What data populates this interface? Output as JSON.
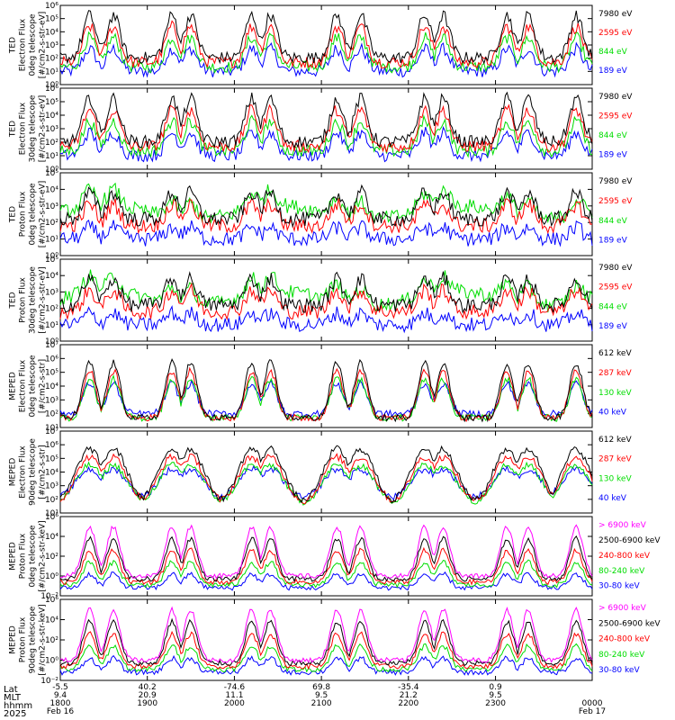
{
  "colors": {
    "blue": "#0000ff",
    "red": "#ff0000",
    "green": "#00dd00",
    "black": "#000000",
    "magenta": "#ff00ff"
  },
  "chart_data": [
    {
      "type": "line",
      "ylabel": [
        "TED",
        "Electron Flux",
        "0deg telescope",
        "[#/cm2-s-str-eV]"
      ],
      "ylim": [
        1,
        1000000
      ],
      "log": true,
      "yticks": [
        "10⁰",
        "10¹",
        "10²",
        "10³",
        "10⁴",
        "10⁵",
        "10⁶"
      ],
      "yticks_exp": [
        0,
        1,
        2,
        3,
        4,
        5,
        6
      ],
      "series": [
        {
          "name": "7980 eV",
          "color": "#000000"
        },
        {
          "name": "2595 eV",
          "color": "#ff0000"
        },
        {
          "name": "844 eV",
          "color": "#00dd00"
        },
        {
          "name": "189 eV",
          "color": "#0000ff"
        }
      ]
    },
    {
      "type": "line",
      "ylabel": [
        "TED",
        "Electron Flux",
        "30deg telescope",
        "[#/cm2-s-str-eV]"
      ],
      "ylim": [
        1,
        1000000
      ],
      "log": true,
      "yticks": [
        "10⁰",
        "10¹",
        "10²",
        "10³",
        "10⁴",
        "10⁵",
        "10⁶"
      ],
      "yticks_exp": [
        0,
        1,
        2,
        3,
        4,
        5,
        6
      ],
      "series": [
        {
          "name": "7980 eV",
          "color": "#000000"
        },
        {
          "name": "2595 eV",
          "color": "#ff0000"
        },
        {
          "name": "844 eV",
          "color": "#00dd00"
        },
        {
          "name": "189 eV",
          "color": "#0000ff"
        }
      ]
    },
    {
      "type": "line",
      "ylabel": [
        "TED",
        "Proton Flux",
        "0deg telescope",
        "[#/cm2-s-str-eV]"
      ],
      "ylim": [
        1,
        100000
      ],
      "log": true,
      "yticks": [
        "10⁰",
        "10¹",
        "10²",
        "10³",
        "10⁴",
        "10⁵"
      ],
      "yticks_exp": [
        0,
        1,
        2,
        3,
        4,
        5
      ],
      "series": [
        {
          "name": "7980 eV",
          "color": "#000000"
        },
        {
          "name": "2595 eV",
          "color": "#ff0000"
        },
        {
          "name": "844 eV",
          "color": "#00dd00"
        },
        {
          "name": "189 eV",
          "color": "#0000ff"
        }
      ]
    },
    {
      "type": "line",
      "ylabel": [
        "TED",
        "Proton Flux",
        "30deg telescope",
        "[#/cm2-s-str-eV]"
      ],
      "ylim": [
        1,
        100000
      ],
      "log": true,
      "yticks": [
        "10⁰",
        "10¹",
        "10²",
        "10³",
        "10⁴",
        "10⁵"
      ],
      "yticks_exp": [
        0,
        1,
        2,
        3,
        4,
        5
      ],
      "series": [
        {
          "name": "7980 eV",
          "color": "#000000"
        },
        {
          "name": "2595 eV",
          "color": "#ff0000"
        },
        {
          "name": "844 eV",
          "color": "#00dd00"
        },
        {
          "name": "189 eV",
          "color": "#0000ff"
        }
      ]
    },
    {
      "type": "line",
      "ylabel": [
        "MEPED",
        "Electron Flux",
        "0deg telescope",
        "[#/cm2-s-str]"
      ],
      "ylim": [
        10,
        10000000
      ],
      "log": true,
      "yticks": [
        "10¹",
        "10²",
        "10³",
        "10⁴",
        "10⁵",
        "10⁶",
        "10⁷"
      ],
      "yticks_exp": [
        1,
        2,
        3,
        4,
        5,
        6,
        7
      ],
      "series": [
        {
          "name": "612 keV",
          "color": "#000000"
        },
        {
          "name": "287 keV",
          "color": "#ff0000"
        },
        {
          "name": "130 keV",
          "color": "#00dd00"
        },
        {
          "name": "40 keV",
          "color": "#0000ff"
        }
      ]
    },
    {
      "type": "line",
      "ylabel": [
        "MEPED",
        "Electron Flux",
        "90deg telescope",
        "[#/cm2-s-str]"
      ],
      "ylim": [
        10,
        10000000
      ],
      "log": true,
      "yticks": [
        "10¹",
        "10²",
        "10³",
        "10⁴",
        "10⁵",
        "10⁶",
        "10⁷"
      ],
      "yticks_exp": [
        1,
        2,
        3,
        4,
        5,
        6,
        7
      ],
      "series": [
        {
          "name": "612 keV",
          "color": "#000000"
        },
        {
          "name": "287 keV",
          "color": "#ff0000"
        },
        {
          "name": "130 keV",
          "color": "#00dd00"
        },
        {
          "name": "40 keV",
          "color": "#0000ff"
        }
      ]
    },
    {
      "type": "line",
      "ylabel": [
        "MEPED",
        "Proton Flux",
        "0deg telescope",
        "[#/cm2-s-str-keV]"
      ],
      "ylim": [
        0.01,
        1000000
      ],
      "log": true,
      "yticks": [
        "10⁻²",
        "10⁰",
        "10²",
        "10⁴",
        "10⁶"
      ],
      "yticks_exp": [
        -2,
        0,
        2,
        4,
        6
      ],
      "series": [
        {
          "name": "> 6900 keV",
          "color": "#ff00ff"
        },
        {
          "name": "2500-6900 keV",
          "color": "#000000"
        },
        {
          "name": "240-800 keV",
          "color": "#ff0000"
        },
        {
          "name": "80-240 keV",
          "color": "#00dd00"
        },
        {
          "name": "30-80 keV",
          "color": "#0000ff"
        }
      ]
    },
    {
      "type": "line",
      "ylabel": [
        "MEPED",
        "Proton Flux",
        "90deg telescope",
        "[#/cm2-s-str-keV]"
      ],
      "ylim": [
        0.01,
        1000000
      ],
      "log": true,
      "yticks": [
        "10⁻²",
        "10⁰",
        "10²",
        "10⁴",
        "10⁶"
      ],
      "yticks_exp": [
        -2,
        0,
        2,
        4,
        6
      ],
      "series": [
        {
          "name": "> 6900 keV",
          "color": "#ff00ff"
        },
        {
          "name": "2500-6900 keV",
          "color": "#000000"
        },
        {
          "name": "240-800 keV",
          "color": "#ff0000"
        },
        {
          "name": "80-240 keV",
          "color": "#00dd00"
        },
        {
          "name": "30-80 keV",
          "color": "#0000ff"
        }
      ]
    }
  ],
  "xaxis": {
    "row_labels": [
      "Lat",
      "MLT",
      "hhmm",
      "2025"
    ],
    "ticks": [
      {
        "lat": "-5.5",
        "mlt": "9.4",
        "hhmm": "1800",
        "date": "Feb 16"
      },
      {
        "lat": "40.2",
        "mlt": "20.9",
        "hhmm": "1900",
        "date": ""
      },
      {
        "lat": "-74.6",
        "mlt": "11.1",
        "hhmm": "2000",
        "date": ""
      },
      {
        "lat": "69.8",
        "mlt": "9.5",
        "hhmm": "2100",
        "date": ""
      },
      {
        "lat": "-35.4",
        "mlt": "21.2",
        "hhmm": "2200",
        "date": ""
      },
      {
        "lat": "0.9",
        "mlt": "9.5",
        "hhmm": "2300",
        "date": ""
      },
      {
        "lat": "",
        "mlt": "",
        "hhmm": "0000",
        "date": "Feb 17"
      }
    ]
  }
}
